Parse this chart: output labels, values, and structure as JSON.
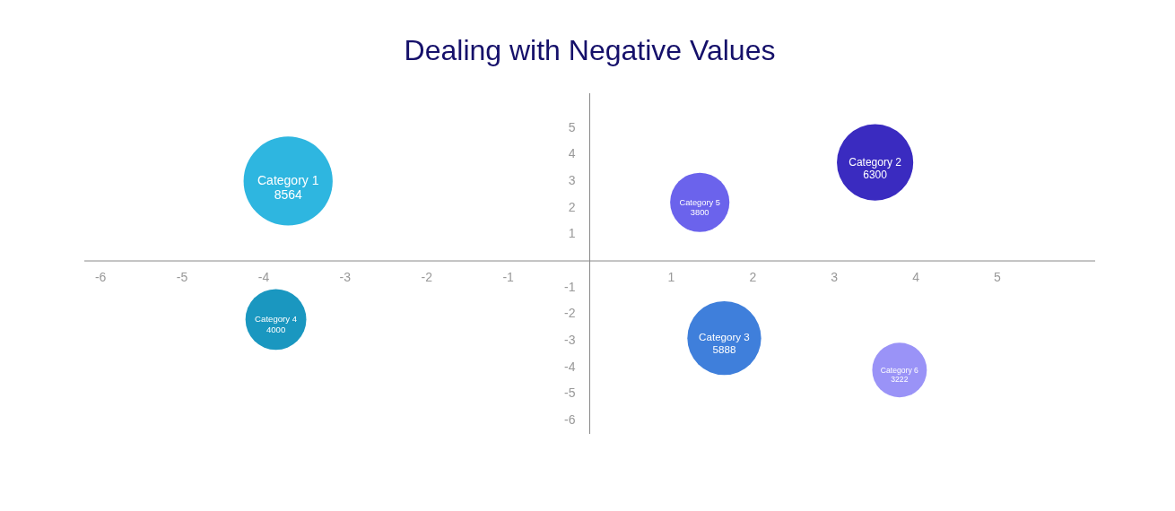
{
  "chart_data": {
    "type": "bubble",
    "title": "Dealing with Negative Values",
    "xlim": [
      -6.2,
      6.2
    ],
    "ylim": [
      -6.5,
      6.3
    ],
    "xticks": [
      -6,
      -5,
      -4,
      -3,
      -2,
      -1,
      1,
      2,
      3,
      4,
      5
    ],
    "yticks": [
      -6,
      -5,
      -4,
      -3,
      -2,
      -1,
      1,
      2,
      3,
      4,
      5
    ],
    "grid": false,
    "series": [
      {
        "name": "Category 1",
        "color": "#2eb6e0",
        "x": [
          -3.7
        ],
        "values": [
          3.0
        ],
        "sizes": [
          8564
        ],
        "value_labels": [
          "8564"
        ]
      },
      {
        "name": "Category 2",
        "color": "#3a2bc0",
        "x": [
          3.5
        ],
        "values": [
          3.7
        ],
        "sizes": [
          6300
        ],
        "value_labels": [
          "6300"
        ]
      },
      {
        "name": "Category 3",
        "color": "#3f7fdb",
        "x": [
          1.65
        ],
        "values": [
          -2.9
        ],
        "sizes": [
          5888
        ],
        "value_labels": [
          "5888"
        ]
      },
      {
        "name": "Category 4",
        "color": "#1a97c0",
        "x": [
          -3.85
        ],
        "values": [
          -2.2
        ],
        "sizes": [
          4000
        ],
        "value_labels": [
          "4000"
        ]
      },
      {
        "name": "Category 5",
        "color": "#6b63ec",
        "x": [
          1.35
        ],
        "values": [
          2.2
        ],
        "sizes": [
          3800
        ],
        "value_labels": [
          "3800"
        ]
      },
      {
        "name": "Category 6",
        "color": "#9a93f7",
        "x": [
          3.8
        ],
        "values": [
          -4.1
        ],
        "sizes": [
          3222
        ],
        "value_labels": [
          "3222"
        ]
      }
    ]
  }
}
